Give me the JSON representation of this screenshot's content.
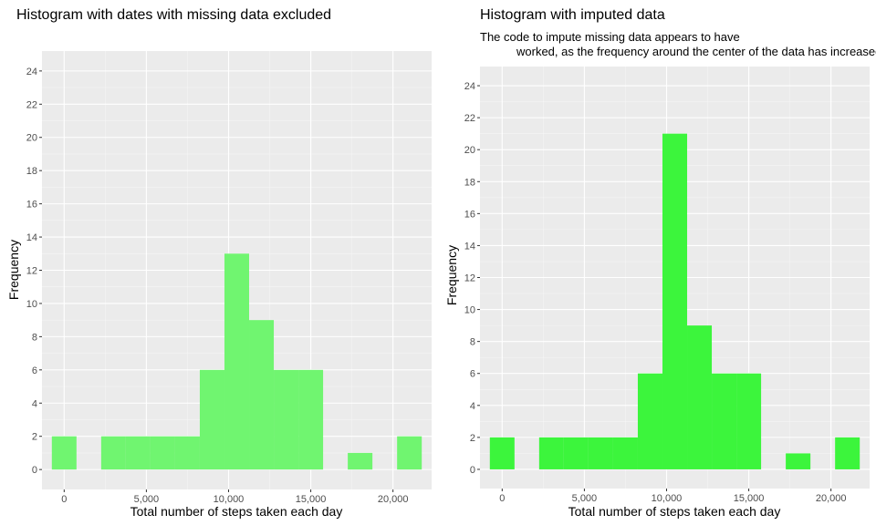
{
  "chart_data": [
    {
      "type": "bar",
      "title": "Histogram with dates with missing data excluded",
      "subtitle": "",
      "xlabel": "Total number of steps taken each day",
      "ylabel": "Frequency",
      "bin_width": 1500,
      "bins": [
        {
          "x": 0,
          "count": 2
        },
        {
          "x": 1500,
          "count": 0
        },
        {
          "x": 3000,
          "count": 2
        },
        {
          "x": 4500,
          "count": 2
        },
        {
          "x": 6000,
          "count": 2
        },
        {
          "x": 7500,
          "count": 2
        },
        {
          "x": 9000,
          "count": 6
        },
        {
          "x": 10500,
          "count": 13
        },
        {
          "x": 12000,
          "count": 9
        },
        {
          "x": 13500,
          "count": 6
        },
        {
          "x": 15000,
          "count": 6
        },
        {
          "x": 16500,
          "count": 0
        },
        {
          "x": 18000,
          "count": 1
        },
        {
          "x": 19500,
          "count": 0
        },
        {
          "x": 21000,
          "count": 2
        }
      ],
      "xlim": [
        -1350,
        22350
      ],
      "ylim": [
        -1.2,
        25.2
      ],
      "x_ticks": [
        0,
        5000,
        10000,
        15000,
        20000
      ],
      "x_tick_labels": [
        "0",
        "5,000",
        "10,000",
        "15,000",
        "20,000"
      ],
      "y_ticks": [
        0,
        2,
        4,
        6,
        8,
        10,
        12,
        14,
        16,
        18,
        20,
        22,
        24
      ],
      "y_tick_labels": [
        "0",
        "2",
        "4",
        "6",
        "8",
        "10",
        "12",
        "14",
        "16",
        "18",
        "20",
        "22",
        "24"
      ],
      "bar_color": "#70f570",
      "panel_color": "#ebebeb",
      "grid": true
    },
    {
      "type": "bar",
      "title": "Histogram with imputed data",
      "subtitle_lines": [
        "The code to impute missing data appears to have",
        "worked, as the frequency around the center of the data has increased."
      ],
      "xlabel": "Total number of steps taken each day",
      "ylabel": "Frequency",
      "bin_width": 1500,
      "bins": [
        {
          "x": 0,
          "count": 2
        },
        {
          "x": 1500,
          "count": 0
        },
        {
          "x": 3000,
          "count": 2
        },
        {
          "x": 4500,
          "count": 2
        },
        {
          "x": 6000,
          "count": 2
        },
        {
          "x": 7500,
          "count": 2
        },
        {
          "x": 9000,
          "count": 6
        },
        {
          "x": 10500,
          "count": 21
        },
        {
          "x": 12000,
          "count": 9
        },
        {
          "x": 13500,
          "count": 6
        },
        {
          "x": 15000,
          "count": 6
        },
        {
          "x": 16500,
          "count": 0
        },
        {
          "x": 18000,
          "count": 1
        },
        {
          "x": 19500,
          "count": 0
        },
        {
          "x": 21000,
          "count": 2
        }
      ],
      "xlim": [
        -1350,
        22350
      ],
      "ylim": [
        -1.2,
        25.2
      ],
      "x_ticks": [
        0,
        5000,
        10000,
        15000,
        20000
      ],
      "x_tick_labels": [
        "0",
        "5,000",
        "10,000",
        "15,000",
        "20,000"
      ],
      "y_ticks": [
        0,
        2,
        4,
        6,
        8,
        10,
        12,
        14,
        16,
        18,
        20,
        22,
        24
      ],
      "y_tick_labels": [
        "0",
        "2",
        "4",
        "6",
        "8",
        "10",
        "12",
        "14",
        "16",
        "18",
        "20",
        "22",
        "24"
      ],
      "bar_color": "#3cf53c",
      "panel_color": "#ebebeb",
      "grid": true
    }
  ]
}
